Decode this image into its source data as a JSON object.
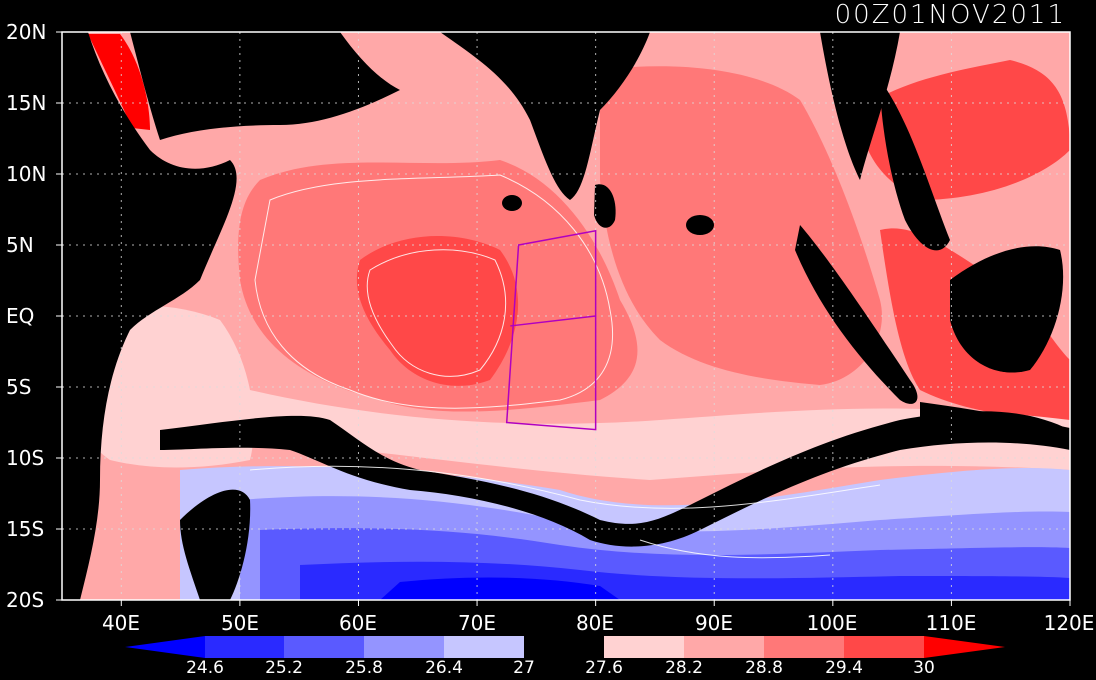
{
  "title": "00Z01NOV2011",
  "y_axis": {
    "labels": [
      "20N",
      "15N",
      "10N",
      "5N",
      "EQ",
      "5S",
      "10S",
      "15S",
      "20S"
    ]
  },
  "x_axis": {
    "labels": [
      "40E",
      "50E",
      "60E",
      "70E",
      "80E",
      "90E",
      "100E",
      "110E",
      "120E"
    ]
  },
  "colorbar": {
    "labels": [
      "24.6",
      "25.2",
      "25.8",
      "26.4",
      "27",
      "27.6",
      "28.2",
      "28.8",
      "29.4",
      "30"
    ],
    "colors": [
      "#0000ff",
      "#2a2aff",
      "#5a5aff",
      "#9494ff",
      "#c6c6ff",
      "#000000",
      "#ffd2d2",
      "#ffa8a8",
      "#ff7878",
      "#ff4848",
      "#ff0000"
    ]
  },
  "map": {
    "region": {
      "lon": [
        35,
        120
      ],
      "lat": [
        -20,
        20
      ]
    },
    "gridlines": "dotted",
    "land_color": "#000000",
    "box_color": "#b000c0",
    "highlight_box": [
      [
        73.5,
        5
      ],
      [
        80,
        6
      ],
      [
        80,
        -8
      ],
      [
        72.5,
        -7.5
      ]
    ]
  }
}
